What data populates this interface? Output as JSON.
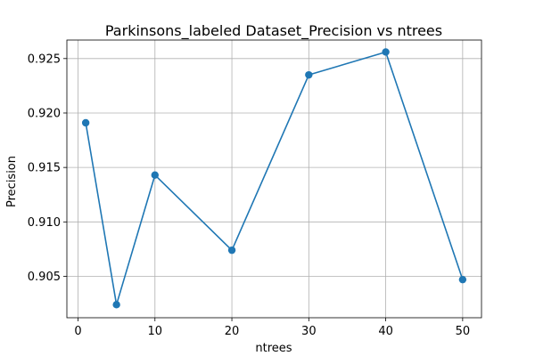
{
  "chart_data": {
    "type": "line",
    "title": "Parkinsons_labeled Dataset_Precision vs ntrees",
    "xlabel": "ntrees",
    "ylabel": "Precision",
    "x": [
      1,
      5,
      10,
      20,
      30,
      40,
      50
    ],
    "series": [
      {
        "values": [
          0.9191,
          0.9024,
          0.9143,
          0.9074,
          0.9235,
          0.9256,
          0.9047
        ]
      }
    ],
    "xlim": [
      -1.45,
      52.45
    ],
    "ylim": [
      0.9012,
      0.9267
    ],
    "xticks": [
      0,
      10,
      20,
      30,
      40,
      50
    ],
    "yticks": [
      0.905,
      0.91,
      0.915,
      0.92,
      0.925
    ],
    "xtick_labels": [
      "0",
      "10",
      "20",
      "30",
      "40",
      "50"
    ],
    "ytick_labels": [
      "0.905",
      "0.910",
      "0.915",
      "0.920",
      "0.925"
    ],
    "grid": true,
    "colors": {
      "line": "#1f77b4",
      "grid": "#b0b0b0",
      "axes": "#000000"
    }
  }
}
